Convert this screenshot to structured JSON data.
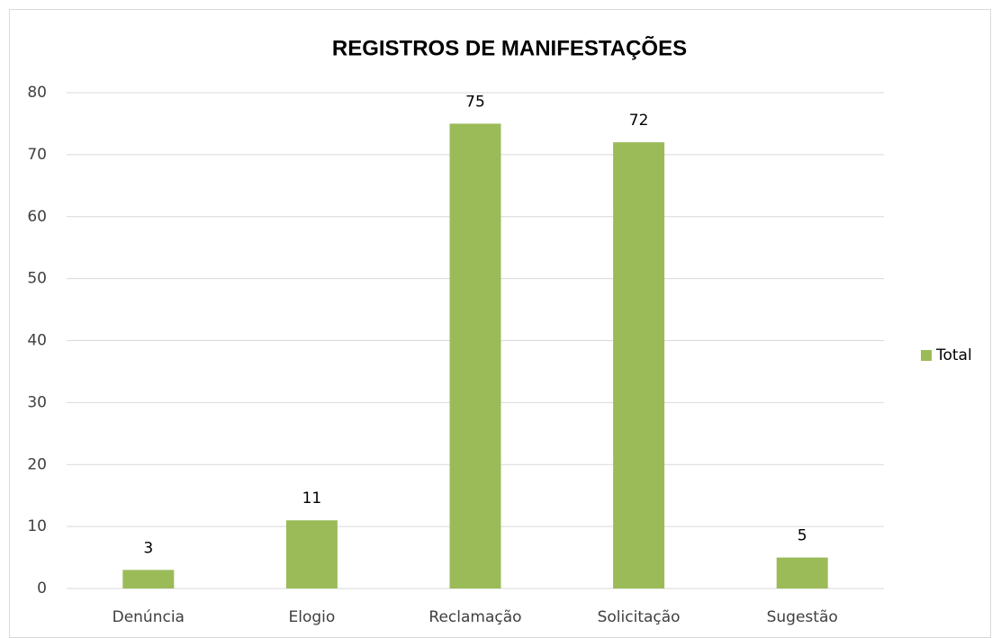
{
  "chart_data": {
    "type": "bar",
    "title": "REGISTROS DE MANIFESTAÇÕES",
    "categories": [
      "Denúncia",
      "Elogio",
      "Reclamação",
      "Solicitação",
      "Sugestão"
    ],
    "series": [
      {
        "name": "Total",
        "color": "#9bbb59",
        "values": [
          3,
          11,
          75,
          72,
          5
        ]
      }
    ],
    "ylim": [
      0,
      80
    ],
    "yticks": [
      0,
      10,
      20,
      30,
      40,
      50,
      60,
      70,
      80
    ],
    "grid": true,
    "legend": "right"
  }
}
